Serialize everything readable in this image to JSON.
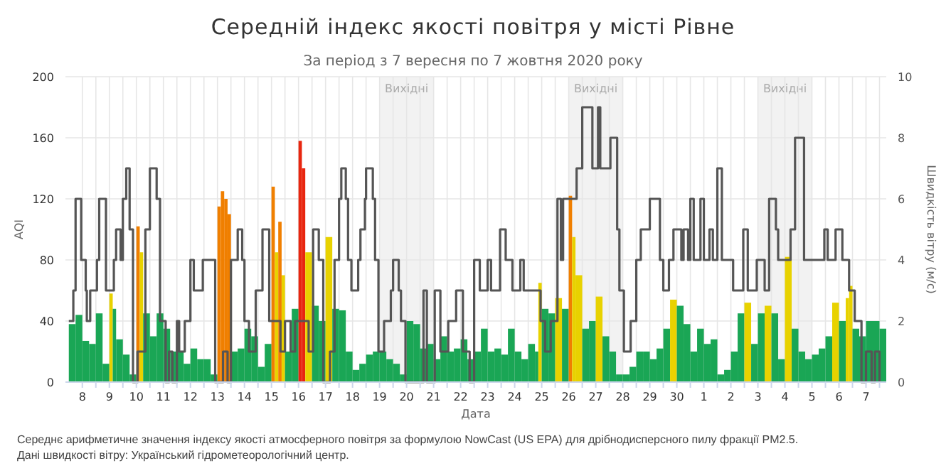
{
  "chart_data": {
    "type": "bar",
    "title": "Середній індекс якості повітря у місті Рівне",
    "subtitle": "За період з 7 вересня по 7 жовтня 2020 року",
    "xlabel": "Дата",
    "ylabel": "AQI",
    "y2label": "Швидкість вітру (м/с)",
    "annotations": [
      "Середнє арифметичне значення індексу якості атмосферного повітря за формулою NowCast (US EPA) для дрібнодисперсного пилу фракції PM2.5.",
      "Дані швидкості вітру: Український гідрометеорологічний центр."
    ],
    "xlim": [
      "2020-09-07T09:00",
      "2020-10-07T18:00"
    ],
    "xticks": [
      {
        "value": "2020-09-08T00:00",
        "label": "8"
      },
      {
        "value": "2020-09-08T12:00",
        "label": null
      },
      {
        "value": "2020-09-09T00:00",
        "label": "9"
      },
      {
        "value": "2020-09-09T12:00",
        "label": null
      },
      {
        "value": "2020-09-10T00:00",
        "label": "10"
      },
      {
        "value": "2020-09-10T12:00",
        "label": null
      },
      {
        "value": "2020-09-11T00:00",
        "label": "11"
      },
      {
        "value": "2020-09-11T12:00",
        "label": null
      },
      {
        "value": "2020-09-12T00:00",
        "label": "12"
      },
      {
        "value": "2020-09-12T12:00",
        "label": null
      },
      {
        "value": "2020-09-13T00:00",
        "label": "13"
      },
      {
        "value": "2020-09-13T12:00",
        "label": null
      },
      {
        "value": "2020-09-14T00:00",
        "label": "14"
      },
      {
        "value": "2020-09-14T12:00",
        "label": null
      },
      {
        "value": "2020-09-15T00:00",
        "label": "15"
      },
      {
        "value": "2020-09-15T12:00",
        "label": null
      },
      {
        "value": "2020-09-16T00:00",
        "label": "16"
      },
      {
        "value": "2020-09-16T12:00",
        "label": null
      },
      {
        "value": "2020-09-17T00:00",
        "label": "17"
      },
      {
        "value": "2020-09-17T12:00",
        "label": null
      },
      {
        "value": "2020-09-18T00:00",
        "label": "18"
      },
      {
        "value": "2020-09-18T12:00",
        "label": null
      },
      {
        "value": "2020-09-19T00:00",
        "label": "19"
      },
      {
        "value": "2020-09-19T12:00",
        "label": null
      },
      {
        "value": "2020-09-20T00:00",
        "label": "20"
      },
      {
        "value": "2020-09-20T12:00",
        "label": null
      },
      {
        "value": "2020-09-21T00:00",
        "label": "21"
      },
      {
        "value": "2020-09-21T12:00",
        "label": null
      },
      {
        "value": "2020-09-22T00:00",
        "label": "22"
      },
      {
        "value": "2020-09-22T12:00",
        "label": null
      },
      {
        "value": "2020-09-23T00:00",
        "label": "23"
      },
      {
        "value": "2020-09-23T12:00",
        "label": null
      },
      {
        "value": "2020-09-24T00:00",
        "label": "24"
      },
      {
        "value": "2020-09-24T12:00",
        "label": null
      },
      {
        "value": "2020-09-25T00:00",
        "label": "25"
      },
      {
        "value": "2020-09-25T12:00",
        "label": null
      },
      {
        "value": "2020-09-26T00:00",
        "label": "26"
      },
      {
        "value": "2020-09-26T12:00",
        "label": null
      },
      {
        "value": "2020-09-27T00:00",
        "label": "27"
      },
      {
        "value": "2020-09-27T12:00",
        "label": null
      },
      {
        "value": "2020-09-28T00:00",
        "label": "28"
      },
      {
        "value": "2020-09-28T12:00",
        "label": null
      },
      {
        "value": "2020-09-29T00:00",
        "label": "29"
      },
      {
        "value": "2020-09-29T12:00",
        "label": null
      },
      {
        "value": "2020-09-30T00:00",
        "label": "30"
      },
      {
        "value": "2020-09-30T12:00",
        "label": null
      },
      {
        "value": "2020-10-01T00:00",
        "label": "1"
      },
      {
        "value": "2020-10-01T12:00",
        "label": null
      },
      {
        "value": "2020-10-02T00:00",
        "label": "2"
      },
      {
        "value": "2020-10-02T12:00",
        "label": null
      },
      {
        "value": "2020-10-03T00:00",
        "label": "3"
      },
      {
        "value": "2020-10-03T12:00",
        "label": null
      },
      {
        "value": "2020-10-04T00:00",
        "label": "4"
      },
      {
        "value": "2020-10-04T12:00",
        "label": null
      },
      {
        "value": "2020-10-05T00:00",
        "label": "5"
      },
      {
        "value": "2020-10-05T12:00",
        "label": null
      },
      {
        "value": "2020-10-06T00:00",
        "label": "6"
      },
      {
        "value": "2020-10-06T12:00",
        "label": null
      },
      {
        "value": "2020-10-07T00:00",
        "label": "7"
      },
      {
        "value": "2020-10-07T12:00",
        "label": null
      }
    ],
    "ylim": [
      0,
      200
    ],
    "yticks": [
      0,
      40,
      80,
      120,
      160,
      200
    ],
    "y2lim": [
      0,
      10
    ],
    "y2ticks": [
      0,
      2,
      4,
      6,
      8,
      10
    ],
    "grid": true,
    "bands": [
      {
        "axis": "x",
        "from": "2020-09-19",
        "to": "2020-09-21",
        "label": "Вихідні",
        "color": "#f2f2f2"
      },
      {
        "axis": "x",
        "from": "2020-09-26",
        "to": "2020-09-28",
        "label": "Вихідні",
        "color": "#f2f2f2"
      },
      {
        "axis": "x",
        "from": "2020-10-03",
        "to": "2020-10-05",
        "label": "Вихідні",
        "color": "#f2f2f2"
      }
    ],
    "series": [
      {
        "x": [
          "2020-09-07T12:00",
          "2020-09-07T18:00",
          "2020-09-08T00:00",
          "2020-09-08T06:00",
          "2020-09-08T12:00",
          "2020-09-08T18:00",
          "2020-09-09T00:00",
          "2020-09-09T03:00",
          "2020-09-09T06:00",
          "2020-09-09T12:00",
          "2020-09-09T18:00",
          "2020-09-10T00:00",
          "2020-09-10T03:00",
          "2020-09-10T06:00",
          "2020-09-10T12:00",
          "2020-09-10T18:00",
          "2020-09-11T00:00",
          "2020-09-11T06:00",
          "2020-09-11T12:00",
          "2020-09-11T18:00",
          "2020-09-12T00:00",
          "2020-09-12T06:00",
          "2020-09-12T12:00",
          "2020-09-12T18:00",
          "2020-09-13T00:00",
          "2020-09-13T03:00",
          "2020-09-13T06:00",
          "2020-09-13T09:00",
          "2020-09-13T12:00",
          "2020-09-13T18:00",
          "2020-09-14T00:00",
          "2020-09-14T06:00",
          "2020-09-14T12:00",
          "2020-09-14T18:00",
          "2020-09-15T00:00",
          "2020-09-15T03:00",
          "2020-09-15T06:00",
          "2020-09-15T09:00",
          "2020-09-15T12:00",
          "2020-09-15T18:00",
          "2020-09-16T00:00",
          "2020-09-16T03:00",
          "2020-09-16T06:00",
          "2020-09-16T12:00",
          "2020-09-16T18:00",
          "2020-09-17T00:00",
          "2020-09-17T06:00",
          "2020-09-17T12:00",
          "2020-09-17T18:00",
          "2020-09-18T00:00",
          "2020-09-18T06:00",
          "2020-09-18T12:00",
          "2020-09-18T18:00",
          "2020-09-19T00:00",
          "2020-09-19T06:00",
          "2020-09-19T12:00",
          "2020-09-19T18:00",
          "2020-09-20T00:00",
          "2020-09-20T06:00",
          "2020-09-20T12:00",
          "2020-09-20T18:00",
          "2020-09-21T00:00",
          "2020-09-21T06:00",
          "2020-09-21T12:00",
          "2020-09-21T18:00",
          "2020-09-22T00:00",
          "2020-09-22T06:00",
          "2020-09-22T12:00",
          "2020-09-22T18:00",
          "2020-09-23T00:00",
          "2020-09-23T06:00",
          "2020-09-23T12:00",
          "2020-09-23T18:00",
          "2020-09-24T00:00",
          "2020-09-24T06:00",
          "2020-09-24T12:00",
          "2020-09-24T18:00",
          "2020-09-24T21:00",
          "2020-09-25T00:00",
          "2020-09-25T06:00",
          "2020-09-25T12:00",
          "2020-09-25T18:00",
          "2020-09-26T00:00",
          "2020-09-26T03:00",
          "2020-09-26T06:00",
          "2020-09-26T12:00",
          "2020-09-26T18:00",
          "2020-09-27T00:00",
          "2020-09-27T06:00",
          "2020-09-27T12:00",
          "2020-09-27T18:00",
          "2020-09-28T00:00",
          "2020-09-28T06:00",
          "2020-09-28T12:00",
          "2020-09-28T18:00",
          "2020-09-29T00:00",
          "2020-09-29T06:00",
          "2020-09-29T12:00",
          "2020-09-29T18:00",
          "2020-09-30T00:00",
          "2020-09-30T06:00",
          "2020-09-30T12:00",
          "2020-09-30T18:00",
          "2020-10-01T00:00",
          "2020-10-01T06:00",
          "2020-10-01T12:00",
          "2020-10-01T18:00",
          "2020-10-02T00:00",
          "2020-10-02T06:00",
          "2020-10-02T12:00",
          "2020-10-02T18:00",
          "2020-10-03T00:00",
          "2020-10-03T06:00",
          "2020-10-03T12:00",
          "2020-10-03T18:00",
          "2020-10-04T00:00",
          "2020-10-04T06:00",
          "2020-10-04T12:00",
          "2020-10-04T18:00",
          "2020-10-05T00:00",
          "2020-10-05T06:00",
          "2020-10-05T12:00",
          "2020-10-05T18:00",
          "2020-10-06T00:00",
          "2020-10-06T06:00",
          "2020-10-06T09:00",
          "2020-10-06T12:00",
          "2020-10-06T18:00",
          "2020-10-07T00:00",
          "2020-10-07T06:00",
          "2020-10-07T12:00"
        ],
        "values": [
          38,
          44,
          27,
          25,
          45,
          12,
          58,
          48,
          28,
          18,
          5,
          102,
          85,
          45,
          30,
          45,
          35,
          20,
          20,
          12,
          22,
          15,
          15,
          5,
          115,
          125,
          120,
          110,
          20,
          22,
          35,
          30,
          10,
          25,
          128,
          85,
          105,
          70,
          20,
          48,
          158,
          140,
          85,
          50,
          40,
          95,
          48,
          47,
          20,
          8,
          12,
          18,
          20,
          20,
          15,
          12,
          5,
          40,
          38,
          22,
          25,
          15,
          30,
          20,
          22,
          28,
          15,
          20,
          35,
          20,
          22,
          18,
          35,
          20,
          15,
          25,
          20,
          65,
          48,
          45,
          55,
          48,
          122,
          95,
          70,
          35,
          40,
          56,
          30,
          20,
          5,
          5,
          10,
          20,
          20,
          15,
          22,
          35,
          54,
          50,
          38,
          20,
          35,
          25,
          28,
          5,
          8,
          20,
          45,
          52,
          25,
          45,
          50,
          45,
          15,
          82,
          35,
          20,
          15,
          18,
          22,
          30,
          52,
          40,
          55,
          63,
          35,
          30,
          40,
          40,
          35
        ],
        "colors": [
          "#1aa655",
          "#1aa655",
          "#1aa655",
          "#1aa655",
          "#1aa655",
          "#1aa655",
          "#e8d200",
          "#1aa655",
          "#1aa655",
          "#1aa655",
          "#1aa655",
          "#f07f00",
          "#e8d200",
          "#1aa655",
          "#1aa655",
          "#1aa655",
          "#1aa655",
          "#1aa655",
          "#1aa655",
          "#1aa655",
          "#1aa655",
          "#1aa655",
          "#1aa655",
          "#1aa655",
          "#f07f00",
          "#f07f00",
          "#f07f00",
          "#f07f00",
          "#1aa655",
          "#1aa655",
          "#1aa655",
          "#1aa655",
          "#1aa655",
          "#1aa655",
          "#f07f00",
          "#e8d200",
          "#f07f00",
          "#e8d200",
          "#1aa655",
          "#1aa655",
          "#e8260f",
          "#e8260f",
          "#e8d200",
          "#1aa655",
          "#1aa655",
          "#e8d200",
          "#1aa655",
          "#1aa655",
          "#1aa655",
          "#1aa655",
          "#1aa655",
          "#1aa655",
          "#1aa655",
          "#1aa655",
          "#1aa655",
          "#1aa655",
          "#1aa655",
          "#1aa655",
          "#1aa655",
          "#1aa655",
          "#1aa655",
          "#1aa655",
          "#1aa655",
          "#1aa655",
          "#1aa655",
          "#1aa655",
          "#1aa655",
          "#1aa655",
          "#1aa655",
          "#1aa655",
          "#1aa655",
          "#1aa655",
          "#1aa655",
          "#1aa655",
          "#1aa655",
          "#1aa655",
          "#1aa655",
          "#e8d200",
          "#1aa655",
          "#1aa655",
          "#e8d200",
          "#1aa655",
          "#f07f00",
          "#e8d200",
          "#e8d200",
          "#1aa655",
          "#1aa655",
          "#e8d200",
          "#1aa655",
          "#1aa655",
          "#1aa655",
          "#1aa655",
          "#1aa655",
          "#1aa655",
          "#1aa655",
          "#1aa655",
          "#1aa655",
          "#1aa655",
          "#e8d200",
          "#1aa655",
          "#1aa655",
          "#1aa655",
          "#1aa655",
          "#1aa655",
          "#1aa655",
          "#1aa655",
          "#1aa655",
          "#1aa655",
          "#1aa655",
          "#e8d200",
          "#1aa655",
          "#1aa655",
          "#e8d200",
          "#1aa655",
          "#1aa655",
          "#e8d200",
          "#1aa655",
          "#1aa655",
          "#1aa655",
          "#1aa655",
          "#1aa655",
          "#1aa655",
          "#e8d200",
          "#1aa655",
          "#e8d200",
          "#e8d200",
          "#1aa655",
          "#1aa655",
          "#1aa655",
          "#1aa655",
          "#1aa655"
        ]
      },
      {
        "type": "step",
        "axis": "y2",
        "color": "#555555",
        "x": [
          "2020-09-07T12:00",
          "2020-09-07T16:00",
          "2020-09-07T18:00",
          "2020-09-07T23:00",
          "2020-09-08T03:00",
          "2020-09-08T04:00",
          "2020-09-08T07:00",
          "2020-09-08T13:00",
          "2020-09-08T15:00",
          "2020-09-08T21:00",
          "2020-09-09T04:00",
          "2020-09-09T06:00",
          "2020-09-09T10:00",
          "2020-09-09T12:00",
          "2020-09-09T15:00",
          "2020-09-09T18:00",
          "2020-09-09T21:00",
          "2020-09-10T01:00",
          "2020-09-10T08:00",
          "2020-09-10T12:00",
          "2020-09-10T18:00",
          "2020-09-10T21:00",
          "2020-09-11T02:00",
          "2020-09-11T05:00",
          "2020-09-11T08:00",
          "2020-09-11T12:00",
          "2020-09-11T14:00",
          "2020-09-11T19:00",
          "2020-09-12T00:00",
          "2020-09-12T03:00",
          "2020-09-12T11:00",
          "2020-09-12T22:00",
          "2020-09-13T05:00",
          "2020-09-13T09:00",
          "2020-09-13T12:00",
          "2020-09-13T18:00",
          "2020-09-13T22:00",
          "2020-09-14T00:00",
          "2020-09-14T04:00",
          "2020-09-14T10:00",
          "2020-09-14T16:00",
          "2020-09-14T22:00",
          "2020-09-15T08:00",
          "2020-09-15T12:00",
          "2020-09-15T17:00",
          "2020-09-15T21:00",
          "2020-09-16T09:00",
          "2020-09-16T13:00",
          "2020-09-16T18:00",
          "2020-09-16T22:00",
          "2020-09-17T04:00",
          "2020-09-17T08:00",
          "2020-09-17T12:00",
          "2020-09-17T14:00",
          "2020-09-17T18:00",
          "2020-09-17T20:00",
          "2020-09-17T23:00",
          "2020-09-18T05:00",
          "2020-09-18T07:00",
          "2020-09-18T11:00",
          "2020-09-18T12:00",
          "2020-09-18T18:00",
          "2020-09-18T20:00",
          "2020-09-18T23:00",
          "2020-09-19T04:00",
          "2020-09-19T10:00",
          "2020-09-19T12:00",
          "2020-09-19T17:00",
          "2020-09-19T19:00",
          "2020-09-19T23:00",
          "2020-09-20T15:00",
          "2020-09-20T18:00",
          "2020-09-21T01:00",
          "2020-09-21T06:00",
          "2020-09-21T13:00",
          "2020-09-21T20:00",
          "2020-09-22T02:00",
          "2020-09-22T08:00",
          "2020-09-22T12:00",
          "2020-09-22T17:00",
          "2020-09-23T00:00",
          "2020-09-23T03:00",
          "2020-09-23T11:00",
          "2020-09-23T16:00",
          "2020-09-23T22:00",
          "2020-09-24T05:00",
          "2020-09-24T08:00",
          "2020-09-24T23:00",
          "2020-09-25T03:00",
          "2020-09-25T08:00",
          "2020-09-25T14:00",
          "2020-09-25T17:00",
          "2020-09-25T19:00",
          "2020-09-26T07:00",
          "2020-09-26T12:00",
          "2020-09-26T21:00",
          "2020-09-27T02:00",
          "2020-09-27T04:00",
          "2020-09-27T13:00",
          "2020-09-27T19:00",
          "2020-09-27T21:00",
          "2020-09-28T01:00",
          "2020-09-28T07:00",
          "2020-09-28T12:00",
          "2020-09-28T16:00",
          "2020-09-29T00:00",
          "2020-09-29T09:00",
          "2020-09-29T12:00",
          "2020-09-29T17:00",
          "2020-09-29T21:00",
          "2020-09-30T04:00",
          "2020-09-30T06:00",
          "2020-09-30T10:00",
          "2020-09-30T12:00",
          "2020-09-30T15:00",
          "2020-09-30T21:00",
          "2020-10-01T00:00",
          "2020-10-01T05:00",
          "2020-10-01T08:00",
          "2020-10-01T12:00",
          "2020-10-01T16:00",
          "2020-10-02T02:00",
          "2020-10-02T11:00",
          "2020-10-02T15:00",
          "2020-10-02T23:00",
          "2020-10-03T06:00",
          "2020-10-03T10:00",
          "2020-10-03T16:00",
          "2020-10-03T18:00",
          "2020-10-04T05:00",
          "2020-10-04T09:00",
          "2020-10-04T17:00",
          "2020-10-05T11:00",
          "2020-10-05T14:00",
          "2020-10-05T21:00",
          "2020-10-06T03:00",
          "2020-10-06T09:00",
          "2020-10-06T14:00",
          "2020-10-06T20:00",
          "2020-10-07T00:00",
          "2020-10-07T05:00",
          "2020-10-07T08:00",
          "2020-10-07T12:00"
        ],
        "values": [
          2,
          3,
          6,
          4,
          3,
          2,
          3,
          4,
          6,
          3,
          4,
          5,
          4,
          6,
          7,
          5,
          0,
          1,
          5,
          7,
          6,
          2,
          0,
          1,
          0,
          2,
          1,
          2,
          4,
          3,
          4,
          0,
          1,
          0,
          4,
          5,
          4,
          2,
          1,
          3,
          5,
          2,
          1,
          2,
          1,
          2,
          1,
          5,
          4,
          0,
          1,
          4,
          6,
          7,
          6,
          4,
          3,
          4,
          5,
          6,
          7,
          6,
          4,
          1,
          2,
          3,
          4,
          3,
          2,
          0,
          3,
          0,
          3,
          1,
          2,
          3,
          1,
          0,
          4,
          3,
          4,
          3,
          5,
          4,
          3,
          4,
          3,
          2,
          1,
          2,
          6,
          4,
          6,
          7,
          9,
          7,
          9,
          7,
          8,
          5,
          3,
          1,
          2,
          4,
          5,
          6,
          4,
          3,
          4,
          5,
          4,
          5,
          4,
          6,
          4,
          6,
          4,
          5,
          4,
          7,
          4,
          3,
          5,
          3,
          4,
          3,
          6,
          5,
          4,
          5,
          8,
          4,
          5,
          4,
          5,
          4,
          3,
          2,
          0,
          1,
          0,
          1,
          0
        ]
      }
    ]
  }
}
